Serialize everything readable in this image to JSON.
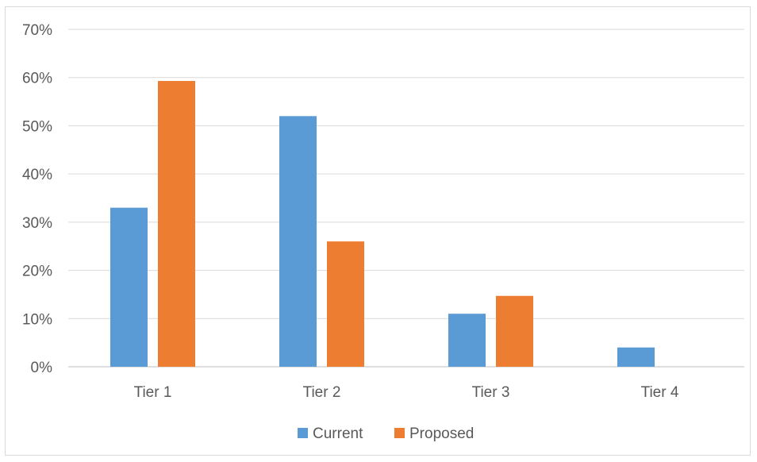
{
  "chart_data": {
    "type": "bar",
    "categories": [
      "Tier 1",
      "Tier 2",
      "Tier 3",
      "Tier 4"
    ],
    "series": [
      {
        "name": "Current",
        "color": "#5B9BD5",
        "values": [
          33,
          52,
          11,
          4
        ]
      },
      {
        "name": "Proposed",
        "color": "#ED7D31",
        "values": [
          59.3,
          26,
          14.7,
          0
        ]
      }
    ],
    "ylim": [
      0,
      70
    ],
    "yticks": [
      {
        "value": 0,
        "label": "0%"
      },
      {
        "value": 10,
        "label": "10%"
      },
      {
        "value": 20,
        "label": "20%"
      },
      {
        "value": 30,
        "label": "30%"
      },
      {
        "value": 40,
        "label": "40%"
      },
      {
        "value": 50,
        "label": "50%"
      },
      {
        "value": 60,
        "label": "60%"
      },
      {
        "value": 70,
        "label": "70%"
      }
    ],
    "grid": true,
    "legend_position": "bottom",
    "title": "",
    "xlabel": "",
    "ylabel": ""
  }
}
